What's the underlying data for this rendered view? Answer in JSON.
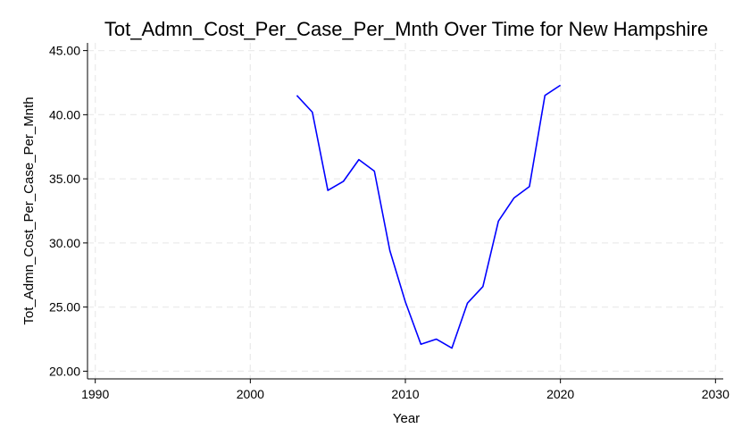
{
  "chart_data": {
    "type": "line",
    "title": "Tot_Admn_Cost_Per_Case_Per_Mnth Over Time for New Hampshire",
    "xlabel": "Year",
    "ylabel": "Tot_Admn_Cost_Per_Case_Per_Mnth",
    "xlim": [
      1989.5,
      2030.5
    ],
    "ylim": [
      19.4,
      45.6
    ],
    "x_ticks": [
      1990,
      2000,
      2010,
      2020,
      2030
    ],
    "x_tick_labels": [
      "1990",
      "2000",
      "2010",
      "2020",
      "2030"
    ],
    "y_ticks": [
      20,
      25,
      30,
      35,
      40,
      45
    ],
    "y_tick_labels": [
      "20.00",
      "25.00",
      "30.00",
      "35.00",
      "40.00",
      "45.00"
    ],
    "grid": true,
    "line_color": "#0000ff",
    "grid_color": "#ebebeb",
    "series": [
      {
        "x": [
          2003,
          2004,
          2005,
          2006,
          2007,
          2008,
          2009,
          2010,
          2011,
          2012,
          2013,
          2014,
          2015,
          2016,
          2017,
          2018,
          2019,
          2020
        ],
        "values": [
          41.5,
          40.2,
          34.1,
          34.8,
          36.5,
          35.6,
          29.4,
          25.4,
          22.1,
          22.5,
          21.8,
          25.3,
          26.6,
          31.7,
          33.5,
          34.4,
          41.5,
          42.3
        ]
      }
    ]
  }
}
